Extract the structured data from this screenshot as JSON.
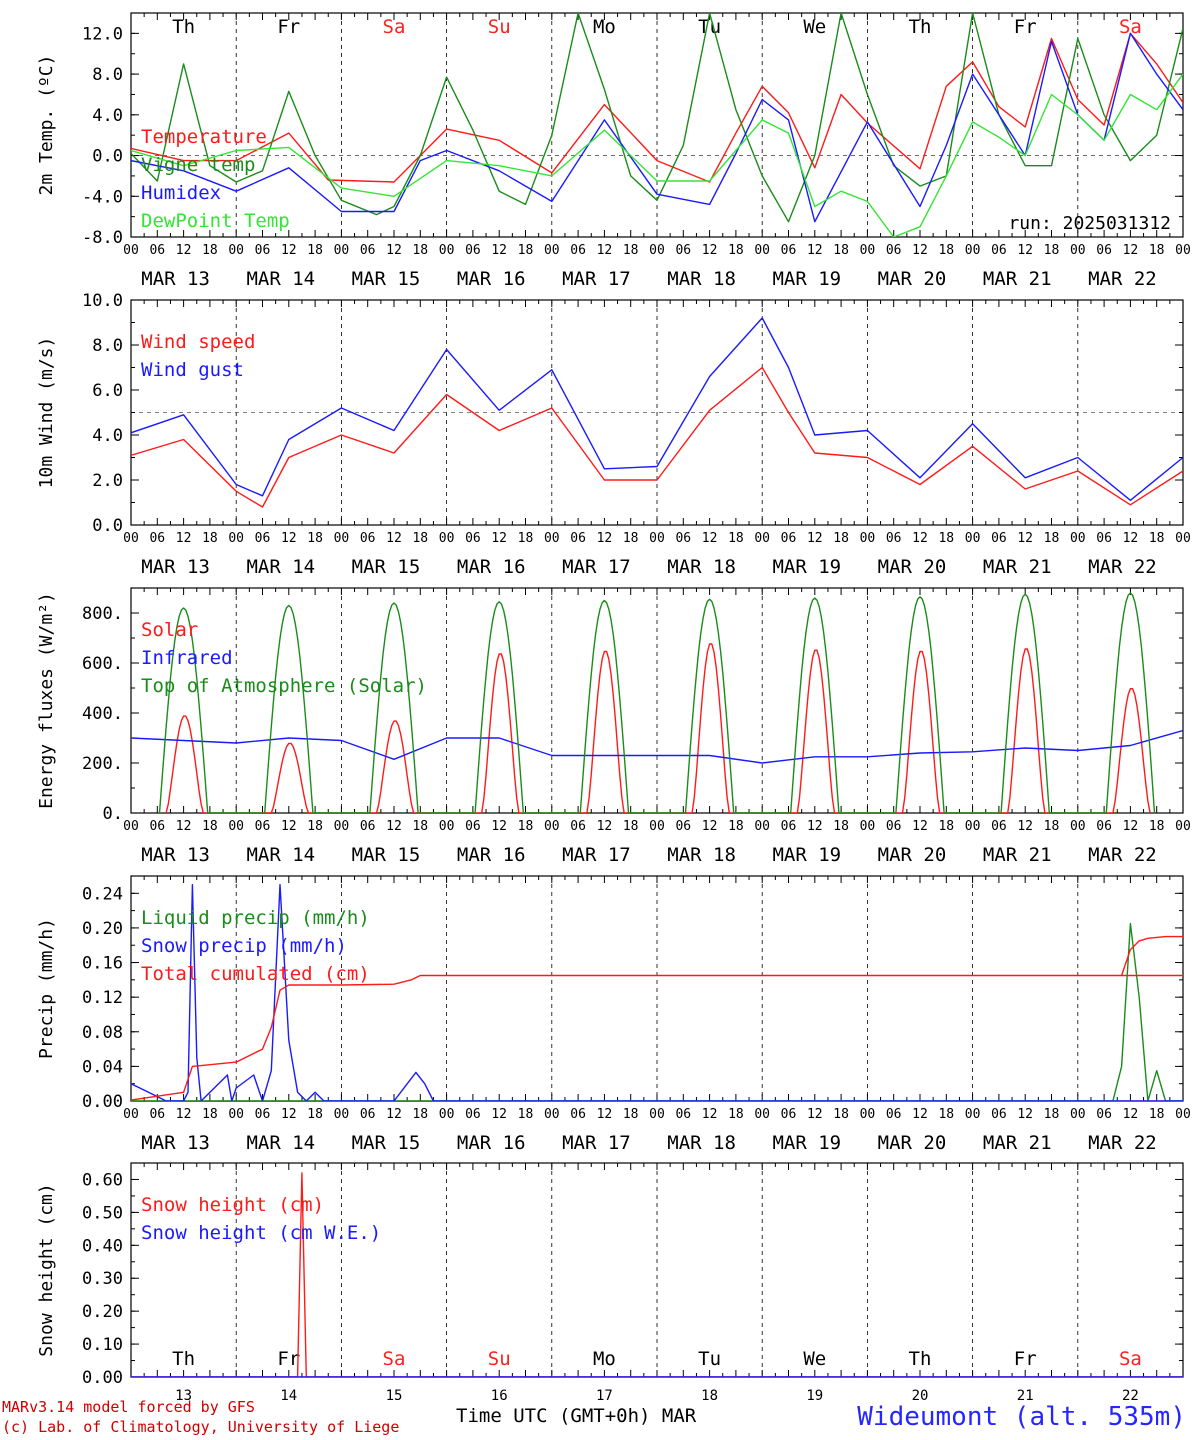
{
  "days": [
    "Th",
    "Fr",
    "Sa",
    "Su",
    "Mo",
    "Tu",
    "We",
    "Th",
    "Fr",
    "Sa"
  ],
  "day_colors": [
    "#000000",
    "#000000",
    "#ff2020",
    "#ff2020",
    "#000000",
    "#000000",
    "#000000",
    "#000000",
    "#000000",
    "#ff2020"
  ],
  "dates": [
    "MAR 13",
    "MAR 14",
    "MAR 15",
    "MAR 16",
    "MAR 17",
    "MAR 18",
    "MAR 19",
    "MAR 20",
    "MAR 21",
    "MAR 22"
  ],
  "date_numbers": [
    "13",
    "14",
    "15",
    "16",
    "17",
    "18",
    "19",
    "20",
    "21",
    "22"
  ],
  "hour_ticks": [
    "00",
    "06",
    "12",
    "18"
  ],
  "hour_end": "00",
  "footer": {
    "model": "MARv3.14 model forced by GFS",
    "credit": "(c) Lab. of Climatology, University of Liege",
    "xlabel": "Time UTC (GMT+0h) MAR",
    "station": "Wideumont (alt. 535m)"
  },
  "chart_data": [
    {
      "type": "line",
      "ylabel": "2m Temp. (ºC)",
      "ylim": [
        -8,
        14
      ],
      "yticks": [
        "12.0",
        "8.0",
        "4.0",
        "0.0",
        "-4.0",
        "-8.0"
      ],
      "ytick_values": [
        12,
        8,
        4,
        0,
        -4,
        -8
      ],
      "ref_line": 0,
      "show_day_names": true,
      "annotation": "run: 2025031312",
      "x_unit": "hours since MAR 13 00 UTC",
      "series": [
        {
          "name": "Temperature",
          "color": "#ff1a1a",
          "x": [
            0,
            12,
            24,
            36,
            45,
            60,
            72,
            84,
            96,
            108,
            120,
            132,
            138,
            144,
            150,
            156,
            162,
            168,
            180,
            186,
            192,
            198,
            204,
            210,
            216,
            222,
            228,
            234,
            240
          ],
          "values": [
            0.7,
            -0.5,
            -0.5,
            2.2,
            -2.4,
            -2.6,
            2.6,
            1.5,
            -1.7,
            5.0,
            -0.5,
            -2.6,
            2.2,
            6.8,
            4.2,
            -1.2,
            6.0,
            3.2,
            -1.3,
            6.8,
            9.2,
            4.8,
            2.8,
            11.5,
            5.5,
            3.0,
            12.0,
            9.0,
            5.2
          ]
        },
        {
          "name": "Vigne temp",
          "color": "#1a8c1a",
          "x": [
            0,
            6,
            12,
            18,
            24,
            30,
            36,
            42,
            48,
            56,
            60,
            66,
            72,
            78,
            84,
            90,
            96,
            102,
            108,
            114,
            120,
            126,
            132,
            138,
            144,
            150,
            156,
            162,
            168,
            174,
            180,
            186,
            192,
            198,
            204,
            210,
            216,
            222,
            228,
            234,
            240
          ],
          "values": [
            0.2,
            -2.5,
            9.0,
            -1.0,
            -2.6,
            -1.5,
            6.3,
            0.0,
            -4.4,
            -5.8,
            -5.0,
            0.0,
            7.7,
            2.5,
            -3.5,
            -4.8,
            2.0,
            14.0,
            6.5,
            -2.0,
            -4.4,
            1.0,
            14.0,
            4.5,
            -2.0,
            -6.5,
            0.0,
            14.0,
            6.0,
            -1.0,
            -3.0,
            -2.0,
            14.0,
            4.0,
            -1.0,
            -1.0,
            11.5,
            4.0,
            -0.5,
            2.0,
            12.5
          ]
        },
        {
          "name": "Humidex",
          "color": "#1a1aff",
          "x": [
            0,
            12,
            24,
            36,
            48,
            60,
            66,
            72,
            84,
            96,
            108,
            120,
            132,
            138,
            144,
            150,
            156,
            168,
            180,
            186,
            192,
            198,
            204,
            210,
            216,
            222,
            228,
            234,
            240
          ],
          "values": [
            -0.5,
            -1.5,
            -3.5,
            -1.2,
            -5.5,
            -5.5,
            -0.5,
            0.5,
            -1.5,
            -4.5,
            3.5,
            -3.8,
            -4.8,
            0.2,
            5.5,
            3.5,
            -6.5,
            3.3,
            -5.0,
            1.0,
            8.0,
            4.0,
            0.0,
            11.2,
            4.0,
            1.5,
            12.0,
            8.0,
            4.5
          ]
        },
        {
          "name": "DewPoint Temp",
          "color": "#33e633",
          "x": [
            0,
            12,
            24,
            36,
            48,
            60,
            72,
            84,
            96,
            108,
            120,
            132,
            144,
            150,
            156,
            162,
            168,
            174,
            180,
            186,
            192,
            198,
            204,
            210,
            216,
            222,
            228,
            234,
            240
          ],
          "values": [
            0.5,
            -1.0,
            0.5,
            0.8,
            -3.2,
            -4.0,
            -0.5,
            -1.0,
            -2.0,
            2.5,
            -2.5,
            -2.5,
            3.5,
            2.2,
            -5.0,
            -3.5,
            -4.5,
            -8.0,
            -7.0,
            -2.0,
            3.3,
            1.8,
            0.0,
            6.0,
            4.0,
            1.5,
            6.0,
            4.5,
            8.0
          ]
        }
      ]
    },
    {
      "type": "line",
      "ylabel": "10m Wind (m/s)",
      "ylim": [
        0,
        10
      ],
      "yticks": [
        "10.0",
        "8.0",
        "6.0",
        "4.0",
        "2.0",
        "0.0"
      ],
      "ytick_values": [
        10,
        8,
        6,
        4,
        2,
        0
      ],
      "ref_line": 5,
      "show_day_names": false,
      "x_unit": "hours since MAR 13 00 UTC",
      "series": [
        {
          "name": "Wind speed",
          "color": "#ff1a1a",
          "x": [
            0,
            12,
            24,
            30,
            36,
            48,
            60,
            72,
            84,
            96,
            108,
            120,
            132,
            144,
            150,
            156,
            168,
            180,
            192,
            204,
            216,
            228,
            240
          ],
          "values": [
            3.1,
            3.8,
            1.5,
            0.8,
            3.0,
            4.0,
            3.2,
            5.8,
            4.2,
            5.2,
            2.0,
            2.0,
            5.1,
            7.0,
            5.0,
            3.2,
            3.0,
            1.8,
            3.5,
            1.6,
            2.4,
            0.9,
            2.4
          ]
        },
        {
          "name": "Wind gust",
          "color": "#1a1aff",
          "x": [
            0,
            12,
            24,
            30,
            36,
            48,
            60,
            72,
            84,
            96,
            108,
            120,
            132,
            144,
            150,
            156,
            168,
            180,
            192,
            204,
            216,
            228,
            240
          ],
          "values": [
            4.1,
            4.9,
            1.8,
            1.3,
            3.8,
            5.2,
            4.2,
            7.8,
            5.1,
            6.9,
            2.5,
            2.6,
            6.6,
            9.2,
            7.0,
            4.0,
            4.2,
            2.1,
            4.5,
            2.1,
            3.0,
            1.1,
            3.0
          ]
        }
      ]
    },
    {
      "type": "line",
      "ylabel": "Energy fluxes (W/m²)",
      "ylim": [
        0,
        900
      ],
      "yticks": [
        "800.",
        "600.",
        "400.",
        "200.",
        "0."
      ],
      "ytick_values": [
        800,
        600,
        400,
        200,
        0
      ],
      "show_day_names": false,
      "x_unit": "hours since MAR 13 00 UTC",
      "daily_peaks": {
        "Solar": [
          390,
          280,
          370,
          640,
          650,
          680,
          655,
          650,
          660,
          500
        ],
        "Top of Atmosphere (Solar)": [
          820,
          830,
          840,
          845,
          850,
          855,
          860,
          865,
          875,
          880
        ]
      },
      "series": [
        {
          "name": "Solar",
          "color": "#ff1a1a"
        },
        {
          "name": "Infrared",
          "color": "#1a1aff",
          "x": [
            0,
            12,
            24,
            36,
            48,
            60,
            72,
            84,
            96,
            108,
            120,
            132,
            144,
            156,
            168,
            180,
            192,
            204,
            216,
            228,
            240
          ],
          "values": [
            300,
            290,
            280,
            300,
            290,
            215,
            300,
            300,
            230,
            230,
            230,
            230,
            200,
            225,
            225,
            240,
            245,
            260,
            250,
            270,
            330
          ]
        },
        {
          "name": "Top of Atmosphere (Solar)",
          "color": "#1a8c1a"
        }
      ]
    },
    {
      "type": "line",
      "ylabel": "Precip (mm/h)",
      "ylim": [
        0,
        0.26
      ],
      "yticks": [
        "0.24",
        "0.20",
        "0.16",
        "0.12",
        "0.08",
        "0.04",
        "0.00"
      ],
      "ytick_values": [
        0.24,
        0.2,
        0.16,
        0.12,
        0.08,
        0.04,
        0
      ],
      "show_day_names": false,
      "x_unit": "hours since MAR 13 00 UTC",
      "series": [
        {
          "name": "Liquid precip (mm/h)",
          "color": "#1a8c1a",
          "x": [
            0,
            224,
            226,
            228,
            230,
            232,
            234,
            236,
            238,
            240
          ],
          "values": [
            0,
            0,
            0.04,
            0.205,
            0.12,
            0,
            0.035,
            0,
            0,
            0
          ]
        },
        {
          "name": "Snow precip (mm/h)",
          "color": "#1a1aff",
          "x": [
            0,
            4,
            8,
            12,
            13,
            14,
            15,
            16,
            22,
            23,
            24,
            28,
            30,
            32,
            34,
            36,
            38,
            40,
            42,
            44,
            48,
            60,
            65,
            67,
            69,
            72,
            240
          ],
          "values": [
            0.02,
            0.01,
            0.0,
            0.0,
            0.01,
            0.25,
            0.05,
            0.0,
            0.03,
            0.0,
            0.015,
            0.03,
            0.0,
            0.035,
            0.25,
            0.07,
            0.01,
            0.0,
            0.01,
            0.0,
            0.0,
            0.0,
            0.033,
            0.02,
            0.0,
            0.0,
            0.0
          ]
        },
        {
          "name": "Total cumulated (cm)",
          "color": "#ff1a1a",
          "x": [
            0,
            12,
            14,
            24,
            30,
            32,
            34,
            36,
            48,
            60,
            64,
            66,
            72,
            240,
            226,
            228,
            230,
            232,
            236,
            240
          ],
          "values": [
            0.001,
            0.01,
            0.04,
            0.045,
            0.06,
            0.085,
            0.128,
            0.134,
            0.134,
            0.135,
            0.14,
            0.145,
            0.145,
            0.145,
            0.145,
            0.175,
            0.185,
            0.188,
            0.19,
            0.19
          ]
        }
      ]
    },
    {
      "type": "line",
      "ylabel": "Snow height (cm)",
      "ylim": [
        0,
        0.65
      ],
      "yticks": [
        "0.60",
        "0.50",
        "0.40",
        "0.30",
        "0.20",
        "0.10",
        "0.00"
      ],
      "ytick_values": [
        0.6,
        0.5,
        0.4,
        0.3,
        0.2,
        0.1,
        0
      ],
      "show_day_names": true,
      "x_unit": "hours since MAR 13 00 UTC",
      "series": [
        {
          "name": "Snow height (cm)",
          "color": "#ff1a1a",
          "x": [
            0,
            38,
            39,
            40,
            240
          ],
          "values": [
            0,
            0,
            0.62,
            0,
            0
          ]
        },
        {
          "name": "Snow height (cm W.E.)",
          "color": "#1a1aff",
          "x": [
            0,
            240
          ],
          "values": [
            0,
            0
          ]
        }
      ]
    }
  ]
}
